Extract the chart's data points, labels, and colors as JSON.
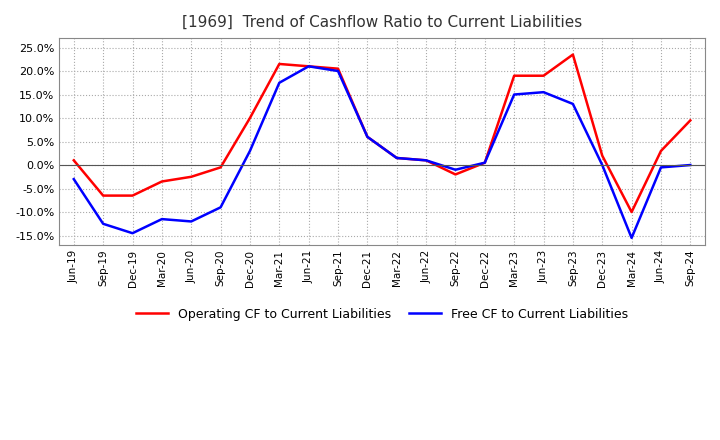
{
  "title": "[1969]  Trend of Cashflow Ratio to Current Liabilities",
  "ylim": [
    -0.17,
    0.27
  ],
  "yticks": [
    -0.15,
    -0.1,
    -0.05,
    0.0,
    0.05,
    0.1,
    0.15,
    0.2,
    0.25
  ],
  "x_labels": [
    "Jun-19",
    "Sep-19",
    "Dec-19",
    "Mar-20",
    "Jun-20",
    "Sep-20",
    "Dec-20",
    "Mar-21",
    "Jun-21",
    "Sep-21",
    "Dec-21",
    "Mar-22",
    "Jun-22",
    "Sep-22",
    "Dec-22",
    "Mar-23",
    "Jun-23",
    "Sep-23",
    "Dec-23",
    "Mar-24",
    "Jun-24",
    "Sep-24"
  ],
  "operating_cf": [
    0.01,
    -0.065,
    -0.065,
    -0.035,
    -0.025,
    -0.005,
    0.1,
    0.215,
    0.21,
    0.205,
    0.06,
    0.015,
    0.01,
    -0.02,
    0.005,
    0.19,
    0.19,
    0.235,
    0.02,
    -0.1,
    0.03,
    0.095
  ],
  "free_cf": [
    -0.03,
    -0.125,
    -0.145,
    -0.115,
    -0.12,
    -0.09,
    0.03,
    0.175,
    0.21,
    0.2,
    0.06,
    0.015,
    0.01,
    -0.01,
    0.005,
    0.15,
    0.155,
    0.13,
    0.0,
    -0.155,
    -0.005,
    0.0
  ],
  "operating_color": "#ff0000",
  "free_color": "#0000ff",
  "background_color": "#ffffff",
  "plot_bg_color": "#ffffff",
  "grid_color": "#aaaaaa",
  "title_fontsize": 11,
  "legend_labels": [
    "Operating CF to Current Liabilities",
    "Free CF to Current Liabilities"
  ]
}
